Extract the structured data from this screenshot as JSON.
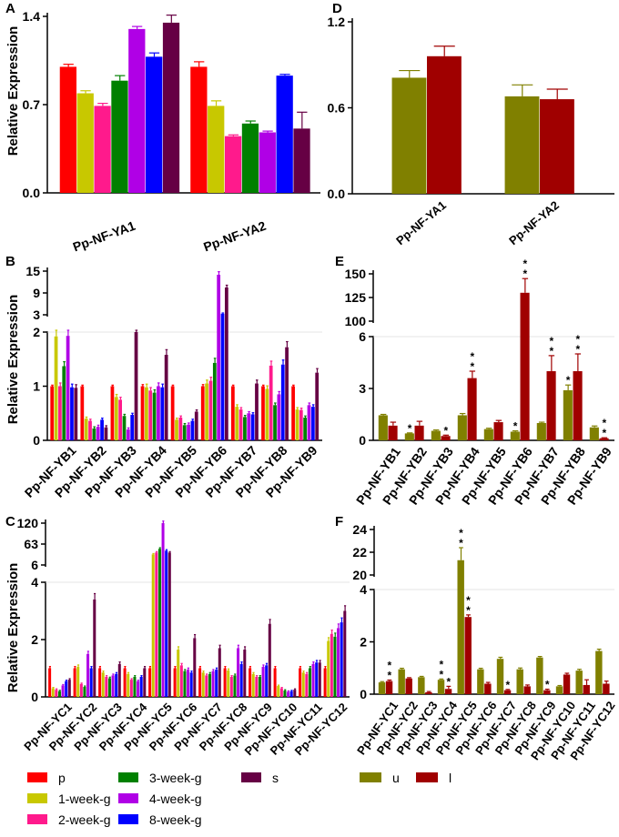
{
  "colors": {
    "p": "#ff0000",
    "1-week-g": "#c8c800",
    "2-week-g": "#ff1a8c",
    "3-week-g": "#008000",
    "4-week-g": "#b000e6",
    "8-week-g": "#0000ff",
    "s": "#660044",
    "u": "#808000",
    "l": "#a00000"
  },
  "legend": {
    "left": [
      "p",
      "1-week-g",
      "2-week-g",
      "3-week-g",
      "4-week-g",
      "8-week-g",
      "s"
    ],
    "right": [
      "u",
      "l"
    ]
  },
  "chart_data": [
    {
      "panel": "A",
      "type": "bar",
      "ylabel": "Relative Expression",
      "yticks": [
        0.0,
        0.7,
        1.4
      ],
      "ytick_labels": [
        "0.0",
        "0.7",
        "1.4"
      ],
      "ylim": [
        0,
        1.4
      ],
      "categories": [
        "Pp-NF-YA1",
        "Pp-NF-YA2"
      ],
      "series": [
        {
          "name": "p",
          "values": [
            1.0,
            1.0
          ],
          "errors": [
            0.02,
            0.04
          ]
        },
        {
          "name": "1-week-g",
          "values": [
            0.79,
            0.69
          ],
          "errors": [
            0.02,
            0.04
          ]
        },
        {
          "name": "2-week-g",
          "values": [
            0.69,
            0.45
          ],
          "errors": [
            0.02,
            0.01
          ]
        },
        {
          "name": "3-week-g",
          "values": [
            0.89,
            0.55
          ],
          "errors": [
            0.04,
            0.02
          ]
        },
        {
          "name": "4-week-g",
          "values": [
            1.3,
            0.48
          ],
          "errors": [
            0.02,
            0.01
          ]
        },
        {
          "name": "8-week-g",
          "values": [
            1.08,
            0.93
          ],
          "errors": [
            0.03,
            0.01
          ]
        },
        {
          "name": "s",
          "values": [
            1.35,
            0.51
          ],
          "errors": [
            0.06,
            0.13
          ]
        }
      ]
    },
    {
      "panel": "B",
      "type": "bar",
      "ylabel": "Relative Expression",
      "yticks_lower": [
        0,
        1,
        2
      ],
      "yticks_upper": [
        3,
        9,
        15
      ],
      "categories": [
        "Pp-NF-YB1",
        "Pp-NF-YB2",
        "Pp-NF-YB3",
        "Pp-NF-YB4",
        "Pp-NF-YB5",
        "Pp-NF-YB6",
        "Pp-NF-YB7",
        "Pp-NF-YB8",
        "Pp-NF-YB9"
      ],
      "series": [
        {
          "name": "p",
          "values": [
            1.0,
            1.0,
            1.0,
            1.0,
            1.0,
            1.0,
            1.0,
            1.0,
            1.0
          ],
          "errors": [
            0.02,
            0.02,
            0.02,
            0.03,
            0.02,
            0.03,
            0.02,
            0.02,
            0.02
          ]
        },
        {
          "name": "1-week-g",
          "values": [
            1.92,
            0.4,
            0.8,
            0.98,
            0.38,
            1.05,
            0.62,
            0.95,
            0.57
          ]
        },
        {
          "name": "2-week-g",
          "values": [
            1.0,
            0.36,
            0.75,
            0.92,
            0.42,
            1.1,
            0.57,
            1.38,
            0.56
          ]
        },
        {
          "name": "3-week-g",
          "values": [
            1.37,
            0.22,
            0.45,
            0.88,
            0.28,
            1.43,
            0.43,
            0.65,
            0.42
          ]
        },
        {
          "name": "4-week-g",
          "values": [
            1.93,
            0.25,
            0.2,
            1.0,
            0.29,
            14.0,
            0.5,
            0.85,
            0.65
          ]
        },
        {
          "name": "8-week-g",
          "values": [
            0.98,
            0.38,
            0.47,
            0.98,
            0.36,
            3.3,
            0.48,
            1.4,
            0.62
          ]
        },
        {
          "name": "s",
          "values": [
            0.97,
            0.24,
            2.0,
            1.58,
            0.53,
            10.5,
            1.05,
            1.72,
            1.25
          ]
        }
      ]
    },
    {
      "panel": "C",
      "type": "bar",
      "ylabel": "Relative Expression",
      "yticks_lower": [
        0,
        2,
        4
      ],
      "yticks_upper": [
        6,
        63,
        120
      ],
      "categories": [
        "Pp-NF-YC1",
        "Pp-NF-YC2",
        "Pp-NF-YC3",
        "Pp-NF-YC4",
        "Pp-NF-YC5",
        "Pp-NF-YC6",
        "Pp-NF-YC7",
        "Pp-NF-YC8",
        "Pp-NF-YC9",
        "Pp-NF-YC10",
        "Pp-NF-YC11",
        "Pp-NF-YC12"
      ],
      "series": [
        {
          "name": "p",
          "values": [
            1.0,
            1.0,
            1.0,
            1.0,
            1.0,
            1.0,
            1.0,
            1.0,
            1.0,
            1.0,
            1.0,
            1.0
          ]
        },
        {
          "name": "1-week-g",
          "values": [
            0.3,
            1.05,
            0.85,
            0.8,
            35,
            1.65,
            0.85,
            0.92,
            0.8,
            0.38,
            0.85,
            1.95
          ]
        },
        {
          "name": "2-week-g",
          "values": [
            0.25,
            0.45,
            0.7,
            0.6,
            40,
            1.1,
            0.75,
            0.7,
            0.7,
            0.3,
            0.8,
            2.2
          ]
        },
        {
          "name": "3-week-g",
          "values": [
            0.2,
            0.35,
            0.65,
            0.7,
            50,
            0.9,
            0.8,
            0.75,
            0.7,
            0.22,
            1.0,
            2.1
          ]
        },
        {
          "name": "4-week-g",
          "values": [
            0.4,
            1.5,
            0.75,
            0.55,
            120,
            0.95,
            0.9,
            1.7,
            1.05,
            0.18,
            1.15,
            2.4
          ]
        },
        {
          "name": "8-week-g",
          "values": [
            0.55,
            1.0,
            0.8,
            0.7,
            45,
            0.85,
            0.95,
            1.15,
            1.1,
            0.2,
            1.2,
            2.6
          ]
        },
        {
          "name": "s",
          "values": [
            0.6,
            3.4,
            1.15,
            1.0,
            40,
            2.05,
            1.7,
            1.65,
            2.55,
            0.25,
            1.2,
            3.0
          ]
        }
      ]
    },
    {
      "panel": "D",
      "type": "bar",
      "yticks": [
        0.0,
        0.6,
        1.2
      ],
      "ytick_labels": [
        "0.0",
        "0.6",
        "1.2"
      ],
      "ylim": [
        0,
        1.2
      ],
      "categories": [
        "Pp-NF-YA1",
        "Pp-NF-YA2"
      ],
      "series": [
        {
          "name": "u",
          "values": [
            0.81,
            0.68
          ],
          "errors": [
            0.05,
            0.08
          ]
        },
        {
          "name": "l",
          "values": [
            0.96,
            0.66
          ],
          "errors": [
            0.07,
            0.07
          ]
        }
      ]
    },
    {
      "panel": "E",
      "type": "bar",
      "yticks_lower": [
        0,
        3,
        6
      ],
      "yticks_upper": [
        100,
        125,
        150
      ],
      "categories": [
        "Pp-NF-YB1",
        "Pp-NF-YB2",
        "Pp-NF-YB3",
        "Pp-NF-YB4",
        "Pp-NF-YB5",
        "Pp-NF-YB6",
        "Pp-NF-YB7",
        "Pp-NF-YB8",
        "Pp-NF-YB9"
      ],
      "series": [
        {
          "name": "u",
          "values": [
            1.45,
            0.4,
            0.55,
            1.45,
            0.65,
            0.5,
            1.0,
            2.9,
            0.75
          ],
          "errors": [
            0.05,
            0.03,
            0.05,
            0.1,
            0.05,
            0.05,
            0.05,
            0.3,
            0.08
          ]
        },
        {
          "name": "l",
          "values": [
            0.85,
            0.85,
            0.25,
            3.6,
            1.05,
            130,
            4.0,
            4.0,
            0.12
          ],
          "errors": [
            0.2,
            0.25,
            0.05,
            0.4,
            0.1,
            15,
            0.9,
            1.0,
            0.03
          ]
        }
      ],
      "significance": [
        {
          "category": "Pp-NF-YB2",
          "series": "u",
          "label": "*"
        },
        {
          "category": "Pp-NF-YB3",
          "series": "l",
          "label": "*"
        },
        {
          "category": "Pp-NF-YB4",
          "series": "l",
          "label": "**"
        },
        {
          "category": "Pp-NF-YB6",
          "series": "u",
          "label": "*"
        },
        {
          "category": "Pp-NF-YB6",
          "series": "l",
          "label": "**"
        },
        {
          "category": "Pp-NF-YB7",
          "series": "l",
          "label": "**"
        },
        {
          "category": "Pp-NF-YB8",
          "series": "u",
          "label": "*"
        },
        {
          "category": "Pp-NF-YB8",
          "series": "l",
          "label": "**"
        },
        {
          "category": "Pp-NF-YB9",
          "series": "l",
          "label": "**"
        }
      ]
    },
    {
      "panel": "F",
      "type": "bar",
      "yticks_lower": [
        0,
        2,
        4
      ],
      "yticks_upper": [
        20,
        22,
        24
      ],
      "categories": [
        "Pp-NF-YC1",
        "Pp-NF-YC2",
        "Pp-NF-YC3",
        "Pp-NF-YC4",
        "Pp-NF-YC5",
        "Pp-NF-YC6",
        "Pp-NF-YC7",
        "Pp-NF-YC8",
        "Pp-NF-YC9",
        "Pp-NF-YC10",
        "Pp-NF-YC11",
        "Pp-NF-YC12"
      ],
      "series": [
        {
          "name": "u",
          "values": [
            0.45,
            0.95,
            0.65,
            0.55,
            21.3,
            0.95,
            1.35,
            0.95,
            1.4,
            0.3,
            0.9,
            1.65
          ],
          "errors": [
            0.03,
            0.04,
            0.03,
            0.03,
            1.1,
            0.04,
            0.06,
            0.05,
            0.04,
            0.03,
            0.05,
            0.07
          ]
        },
        {
          "name": "l",
          "values": [
            0.5,
            0.6,
            0.07,
            0.2,
            2.95,
            0.4,
            0.15,
            0.3,
            0.15,
            0.75,
            0.35,
            0.4
          ],
          "errors": [
            0.04,
            0.03,
            0.03,
            0.1,
            0.08,
            0.05,
            0.03,
            0.05,
            0.04,
            0.05,
            0.2,
            0.1
          ]
        }
      ],
      "significance": [
        {
          "category": "Pp-NF-YC1",
          "series": "l",
          "label": "**"
        },
        {
          "category": "Pp-NF-YC4",
          "series": "u",
          "label": "**"
        },
        {
          "category": "Pp-NF-YC4",
          "series": "l",
          "label": "*"
        },
        {
          "category": "Pp-NF-YC5",
          "series": "u",
          "label": "**"
        },
        {
          "category": "Pp-NF-YC5",
          "series": "l",
          "label": "**"
        },
        {
          "category": "Pp-NF-YC7",
          "series": "l",
          "label": "*"
        },
        {
          "category": "Pp-NF-YC9",
          "series": "l",
          "label": "*"
        }
      ]
    }
  ]
}
